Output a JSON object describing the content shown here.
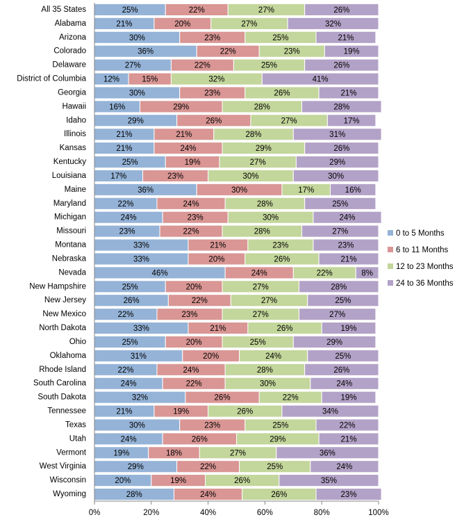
{
  "chart_data": {
    "type": "stacked-bar-horizontal",
    "categories": [
      "All 35 States",
      "Alabama",
      "Arizona",
      "Colorado",
      "Delaware",
      "District of Columbia",
      "Georgia",
      "Hawaii",
      "Idaho",
      "Illinois",
      "Kansas",
      "Kentucky",
      "Louisiana",
      "Maine",
      "Maryland",
      "Michigan",
      "Missouri",
      "Montana",
      "Nebraska",
      "Nevada",
      "New Hampshire",
      "New Jersey",
      "New Mexico",
      "North Dakota",
      "Ohio",
      "Oklahoma",
      "Rhode Island",
      "South Carolina",
      "South Dakota",
      "Tennessee",
      "Texas",
      "Utah",
      "Vermont",
      "West Virginia",
      "Wisconsin",
      "Wyoming"
    ],
    "series": [
      {
        "name": "0 to 5 Months",
        "color": "#95b3d7",
        "values": [
          25,
          21,
          30,
          36,
          27,
          12,
          30,
          16,
          29,
          21,
          21,
          25,
          17,
          36,
          22,
          24,
          23,
          33,
          33,
          46,
          25,
          26,
          22,
          33,
          25,
          31,
          22,
          24,
          32,
          21,
          30,
          24,
          19,
          29,
          20,
          28
        ],
        "value_labels": [
          "25%",
          "21%",
          "30%",
          "36%",
          "27%",
          "12%",
          "30%",
          "16%",
          "29%",
          "21%",
          "21%",
          "25%",
          "17%",
          "36%",
          "22%",
          "24%",
          "23%",
          "33%",
          "33%",
          "46%",
          "25%",
          "26%",
          "22%",
          "33%",
          "25%",
          "31%",
          "22%",
          "24%",
          "32%",
          "21%",
          "30%",
          "24%",
          "19%",
          "29%",
          "20%",
          "28%"
        ]
      },
      {
        "name": "6 to 11 Months",
        "color": "#d99694",
        "values": [
          22,
          20,
          23,
          22,
          22,
          15,
          23,
          29,
          26,
          21,
          24,
          19,
          23,
          30,
          24,
          23,
          22,
          21,
          20,
          24,
          20,
          22,
          23,
          21,
          20,
          20,
          24,
          22,
          26,
          19,
          23,
          26,
          18,
          22,
          19,
          24
        ],
        "value_labels": [
          "22%",
          "20%",
          "23%",
          "22%",
          "22%",
          "15%",
          "23%",
          "29%",
          "26%",
          "21%",
          "24%",
          "19%",
          "23%",
          "30%",
          "24%",
          "23%",
          "22%",
          "21%",
          "20%",
          "24%",
          "20%",
          "22%",
          "23%",
          "21%",
          "20%",
          "20%",
          "24%",
          "22%",
          "26%",
          "19%",
          "23%",
          "26%",
          "18%",
          "22%",
          "19%",
          "24%"
        ]
      },
      {
        "name": "12 to 23 Months",
        "color": "#c3d69b",
        "values": [
          27,
          27,
          25,
          23,
          25,
          32,
          26,
          28,
          27,
          28,
          29,
          27,
          30,
          17,
          28,
          30,
          28,
          23,
          26,
          22,
          27,
          27,
          27,
          26,
          25,
          24,
          28,
          30,
          22,
          26,
          25,
          29,
          27,
          25,
          26,
          26
        ],
        "value_labels": [
          "27%",
          "27%",
          "25%",
          "23%",
          "25%",
          "32%",
          "26%",
          "28%",
          "27%",
          "28%",
          "29%",
          "27%",
          "30%",
          "17%",
          "28%",
          "30%",
          "28%",
          "23%",
          "26%",
          "22%",
          "27%",
          "27%",
          "27%",
          "26%",
          "25%",
          "24%",
          "28%",
          "30%",
          "22%",
          "26%",
          "25%",
          "29%",
          "27%",
          "25%",
          "26%",
          "26%"
        ]
      },
      {
        "name": "24 to 36 Months",
        "color": "#b3a2c7",
        "values": [
          26,
          32,
          21,
          19,
          26,
          41,
          21,
          28,
          17,
          31,
          26,
          29,
          30,
          16,
          25,
          24,
          27,
          23,
          21,
          8,
          28,
          25,
          27,
          19,
          29,
          25,
          26,
          24,
          19,
          34,
          22,
          21,
          36,
          24,
          35,
          23
        ],
        "value_labels": [
          "26%",
          "32%",
          "21%",
          "19%",
          "26%",
          "41%",
          "21%",
          "28%",
          "17%",
          "31%",
          "26%",
          "29%",
          "30%",
          "16%",
          "25%",
          "24%",
          "27%",
          "23%",
          "21%",
          "8%",
          "28%",
          "25%",
          "27%",
          "19%",
          "29%",
          "25%",
          "26%",
          "24%",
          "19%",
          "34%",
          "22%",
          "21%",
          "36%",
          "24%",
          "35%",
          "23%"
        ]
      }
    ],
    "xlim": [
      0,
      100
    ],
    "xticks": [
      {
        "value": 0,
        "label": "0%"
      },
      {
        "value": 20,
        "label": "20%"
      },
      {
        "value": 40,
        "label": "40%"
      },
      {
        "value": 60,
        "label": "60%"
      },
      {
        "value": 80,
        "label": "80%"
      },
      {
        "value": 100,
        "label": "100%"
      }
    ],
    "legend": "right"
  }
}
